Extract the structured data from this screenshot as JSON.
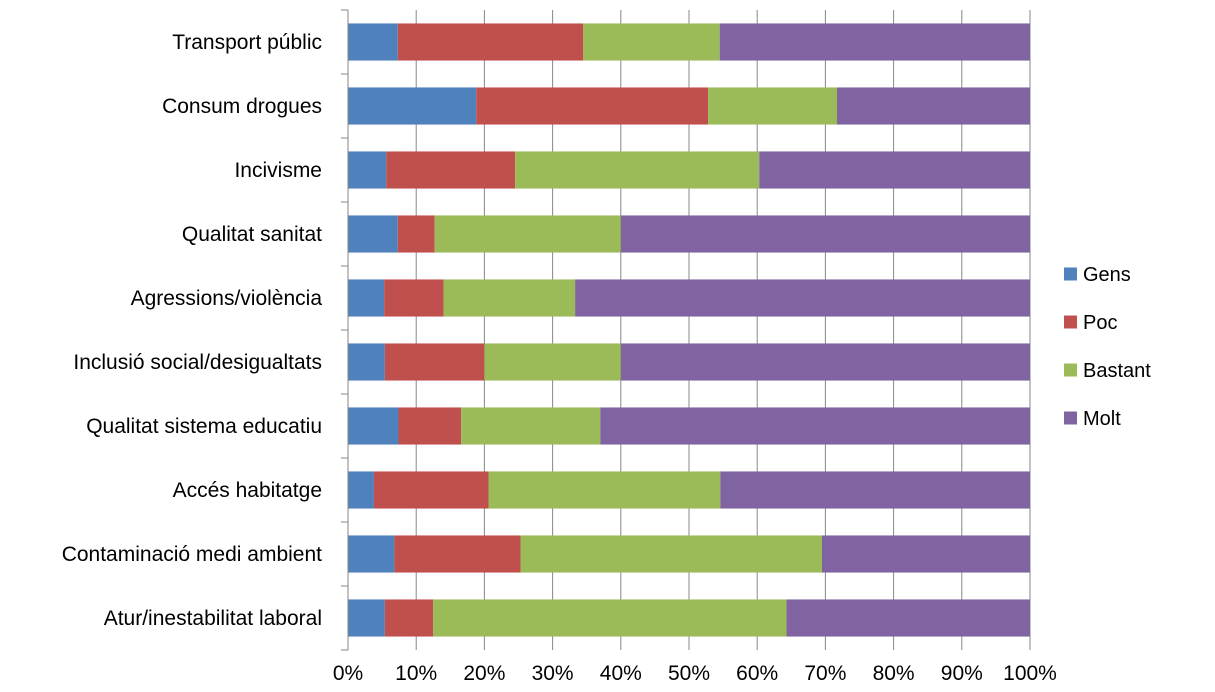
{
  "chart_data": {
    "type": "bar",
    "orientation": "horizontal",
    "stacked": "percent",
    "categories": [
      "Transport públic",
      "Consum drogues",
      "Incivisme",
      "Qualitat sanitat",
      "Agressions/violència",
      "Inclusió social/desigualtats",
      "Qualitat sistema educatiu",
      "Accés habitatge",
      "Contaminació medi ambient",
      "Atur/inestabilitat laboral"
    ],
    "series": [
      {
        "name": "Gens",
        "color": "#4F81BD",
        "values": [
          7.3,
          18.8,
          5.6,
          7.3,
          5.3,
          5.4,
          7.4,
          3.8,
          6.8,
          5.4
        ]
      },
      {
        "name": "Poc",
        "color": "#C0504D",
        "values": [
          27.2,
          34.0,
          18.9,
          5.4,
          8.7,
          14.6,
          9.2,
          16.8,
          18.5,
          7.1
        ]
      },
      {
        "name": "Bastant",
        "color": "#9BBB59",
        "values": [
          20.0,
          18.9,
          35.8,
          27.3,
          19.3,
          20.0,
          20.4,
          34.0,
          44.2,
          51.8
        ]
      },
      {
        "name": "Molt",
        "color": "#8064A2",
        "values": [
          45.5,
          28.3,
          39.7,
          60.0,
          66.7,
          60.0,
          63.0,
          45.4,
          30.5,
          35.7
        ]
      }
    ],
    "xaxis": {
      "range": [
        0,
        100
      ],
      "ticks": [
        "0%",
        "10%",
        "20%",
        "30%",
        "40%",
        "50%",
        "60%",
        "70%",
        "80%",
        "90%",
        "100%"
      ]
    },
    "grid": "vertical",
    "legend_position": "right",
    "title": "",
    "xlabel": "",
    "ylabel": ""
  }
}
